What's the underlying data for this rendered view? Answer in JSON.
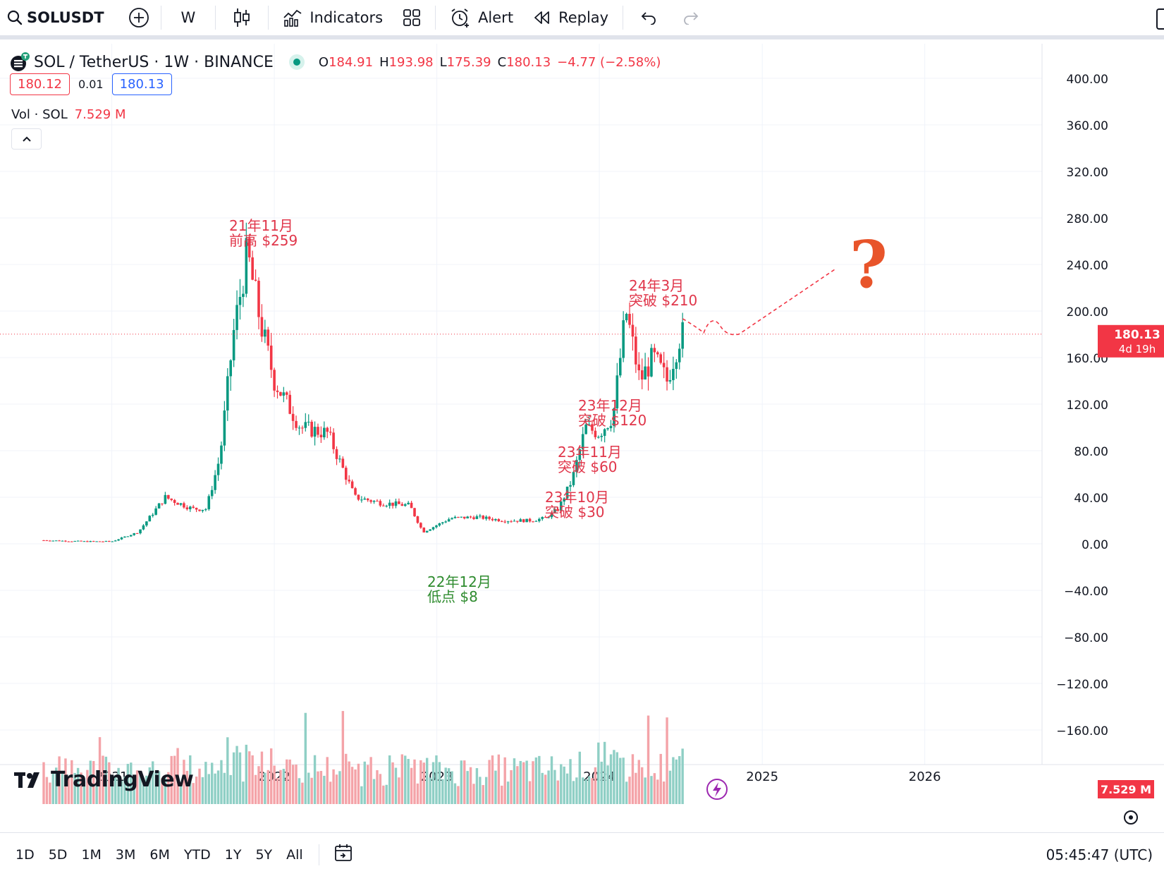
{
  "toolbar": {
    "symbol": "SOLUSDT",
    "interval": "W",
    "indicators_label": "Indicators",
    "alert_label": "Alert",
    "replay_label": "Replay"
  },
  "legend": {
    "title": "SOL / TetherUS · 1W · BINANCE",
    "o_key": "O",
    "o_val": "184.91",
    "h_key": "H",
    "h_val": "193.98",
    "l_key": "L",
    "l_val": "175.39",
    "c_key": "C",
    "c_val": "180.13",
    "change": "−4.77 (−2.58%)",
    "sell_price": "180.12",
    "spread": "0.01",
    "buy_price": "180.13",
    "vol_label": "Vol · SOL",
    "vol_value": "7.529 M"
  },
  "colors": {
    "up": "#089981",
    "down": "#f23645",
    "vol_up": "#8fcfc5",
    "vol_down": "#f4a3a8",
    "annot_red": "#e0364a",
    "annot_green": "#2e8b2e",
    "question": "#e8542a",
    "accent": "#2962ff"
  },
  "axis": {
    "price_ticks": [
      "400.00",
      "360.00",
      "320.00",
      "280.00",
      "240.00",
      "200.00",
      "160.00",
      "120.00",
      "80.00",
      "40.00",
      "0.00",
      "−40.00",
      "−80.00",
      "−120.00",
      "−160.00"
    ],
    "time_ticks": [
      "2021",
      "2022",
      "2023",
      "2024",
      "2025",
      "2026"
    ],
    "last_price_label": "180.13",
    "countdown_label": "4d 19h",
    "volume_label": "7.529 M"
  },
  "chart_data": {
    "type": "line",
    "x": [
      "2020-08",
      "2020-11",
      "2021-01",
      "2021-03",
      "2021-05",
      "2021-07",
      "2021-08",
      "2021-09",
      "2021-10",
      "2021-11",
      "2021-12",
      "2022-01",
      "2022-03",
      "2022-05",
      "2022-07",
      "2022-09",
      "2022-11",
      "2022-12",
      "2023-02",
      "2023-04",
      "2023-06",
      "2023-08",
      "2023-09",
      "2023-10",
      "2023-11",
      "2023-12",
      "2024-01",
      "2024-02",
      "2024-03",
      "2024-04",
      "2024-05",
      "2024-06",
      "2024-07"
    ],
    "series": [
      {
        "values": [
          3,
          2,
          2,
          10,
          40,
          30,
          30,
          75,
          180,
          250,
          190,
          140,
          100,
          95,
          40,
          35,
          33,
          10,
          22,
          23,
          20,
          20,
          22,
          30,
          55,
          100,
          95,
          110,
          200,
          140,
          160,
          140,
          180
        ]
      }
    ],
    "ylim": [
      -160,
      400
    ],
    "annotations": [
      {
        "line1": "21年11月",
        "line2": "前高 $259"
      },
      {
        "line1": "22年12月",
        "line2": "低点 $8"
      },
      {
        "line1": "23年10月",
        "line2": "突破 $30"
      },
      {
        "line1": "23年11月",
        "line2": "突破 $60"
      },
      {
        "line1": "23年12月",
        "line2": "突破 $120"
      },
      {
        "line1": "24年3月",
        "line2": "突破 $210"
      }
    ],
    "question_mark": "?",
    "grid": true
  },
  "watermark": "TradingView",
  "bottom": {
    "ranges": [
      "1D",
      "5D",
      "1M",
      "3M",
      "6M",
      "YTD",
      "1Y",
      "5Y",
      "All"
    ],
    "clock": "05:45:47 (UTC)"
  }
}
